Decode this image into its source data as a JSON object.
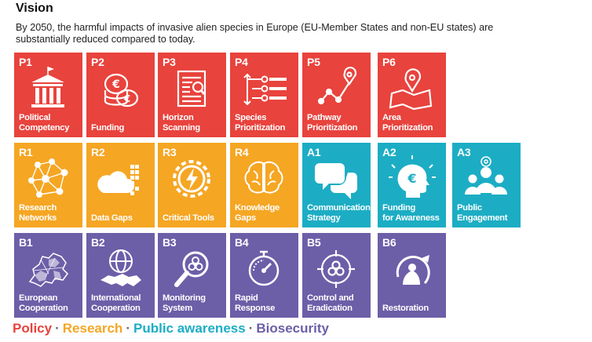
{
  "header": {
    "title": "Vision",
    "subtitle": "By 2050, the harmful impacts of invasive alien species in Europe (EU-Member States and non-EU states) are substantially reduced compared to today."
  },
  "colors": {
    "policy": "#e8433d",
    "research": "#f5a623",
    "public_awareness": "#1cadc4",
    "biosecurity": "#6d5ea8"
  },
  "tiles": [
    {
      "code": "P1",
      "label": "Political\nCompetency",
      "group": "policy",
      "icon": "government-building-icon"
    },
    {
      "code": "P2",
      "label": "Funding",
      "group": "policy",
      "icon": "coins-icon"
    },
    {
      "code": "P3",
      "label": "Horizon\nScanning",
      "group": "policy",
      "icon": "document-search-icon"
    },
    {
      "code": "P4",
      "label": "Species\nPrioritization",
      "group": "policy",
      "icon": "sorted-list-icon"
    },
    {
      "code": "P5",
      "label": "Pathway\nPrioritization",
      "group": "policy",
      "icon": "route-pin-icon"
    },
    {
      "code": "P6",
      "label": "Area\nPrioritization",
      "group": "policy",
      "icon": "map-pin-icon"
    },
    {
      "code": "R1",
      "label": "Research\nNetworks",
      "group": "research",
      "icon": "network-icon"
    },
    {
      "code": "R2",
      "label": "Data Gaps",
      "group": "research",
      "icon": "cloud-data-icon"
    },
    {
      "code": "R3",
      "label": "Critical Tools",
      "group": "research",
      "icon": "gear-bolt-icon"
    },
    {
      "code": "R4",
      "label": "Knowledge\nGaps",
      "group": "research",
      "icon": "brain-icon"
    },
    {
      "code": "A1",
      "label": "Communication\nStrategy",
      "group": "public",
      "icon": "speech-bubbles-icon"
    },
    {
      "code": "A2",
      "label": "Funding\nfor Awareness",
      "group": "public",
      "icon": "head-euro-icon"
    },
    {
      "code": "A3",
      "label": "Public\nEngagement",
      "group": "public",
      "icon": "people-group-icon"
    },
    {
      "code": "B1",
      "label": "European\nCooperation",
      "group": "bio",
      "icon": "europe-map-icon"
    },
    {
      "code": "B2",
      "label": "International\nCooperation",
      "group": "bio",
      "icon": "globe-handshake-icon"
    },
    {
      "code": "B3",
      "label": "Monitoring\nSystem",
      "group": "bio",
      "icon": "biohazard-magnifier-icon"
    },
    {
      "code": "B4",
      "label": "Rapid\nResponse",
      "group": "bio",
      "icon": "stopwatch-icon"
    },
    {
      "code": "B5",
      "label": "Control and\nEradication",
      "group": "bio",
      "icon": "biohazard-target-icon"
    },
    {
      "code": "B6",
      "label": "Restoration",
      "group": "bio",
      "icon": "restoration-cycle-icon"
    }
  ],
  "legend": {
    "items": [
      "Policy",
      "Research",
      "Public awareness",
      "Biosecurity"
    ],
    "separator": "·"
  }
}
